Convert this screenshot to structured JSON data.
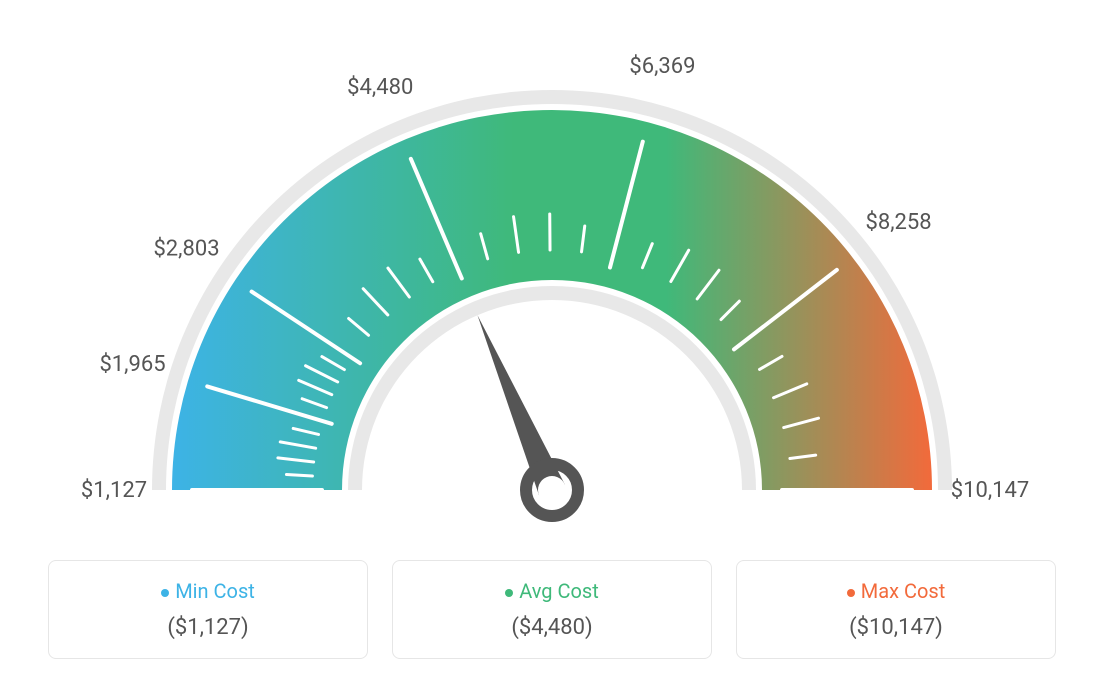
{
  "gauge": {
    "type": "gauge",
    "min": 1127,
    "max": 10147,
    "avg": 4480,
    "ticks": [
      {
        "value": 1127,
        "label": "$1,127"
      },
      {
        "value": 1965,
        "label": "$1,965"
      },
      {
        "value": 2803,
        "label": "$2,803"
      },
      {
        "value": 4480,
        "label": "$4,480"
      },
      {
        "value": 6369,
        "label": "$6,369"
      },
      {
        "value": 8258,
        "label": "$8,258"
      },
      {
        "value": 10147,
        "label": "$10,147"
      }
    ],
    "colors": {
      "min_color": "#3db3e6",
      "avg_color": "#3fb97a",
      "max_color": "#f26a3b",
      "track_color": "#e8e8e8",
      "needle_color": "#555555",
      "tick_color": "#ffffff",
      "label_color": "#555555",
      "background": "#ffffff"
    },
    "styling": {
      "outer_radius": 380,
      "inner_radius": 210,
      "track_outer": 400,
      "track_inner": 190,
      "start_angle": 180,
      "end_angle": 0,
      "label_fontsize": 22,
      "legend_fontsize": 20,
      "value_fontsize": 22,
      "tick_stroke_width": 3,
      "needle_width": 10
    }
  },
  "legend": {
    "min": {
      "label": "Min Cost",
      "value": "($1,127)",
      "color": "#3db3e6"
    },
    "avg": {
      "label": "Avg Cost",
      "value": "($4,480)",
      "color": "#3fb97a"
    },
    "max": {
      "label": "Max Cost",
      "value": "($10,147)",
      "color": "#f26a3b"
    }
  }
}
